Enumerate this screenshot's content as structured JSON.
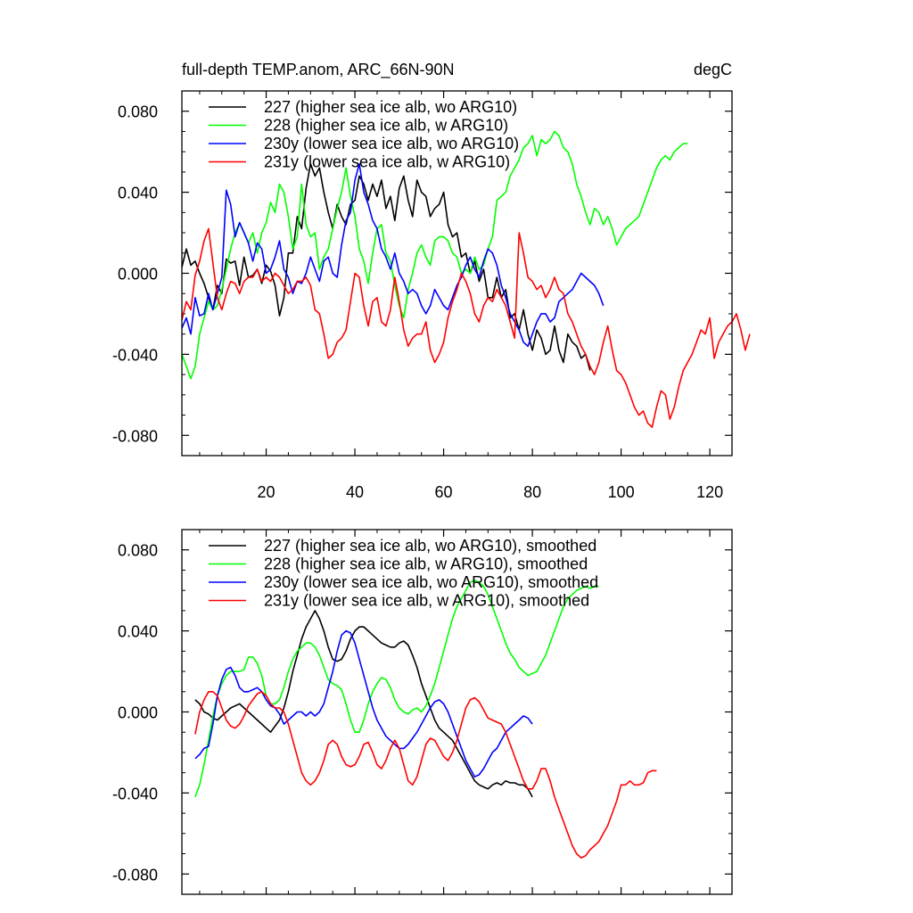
{
  "chart_data": [
    {
      "type": "line",
      "title": "full-depth TEMP.anom, ARC_66N-90N",
      "units": "degC",
      "xlim": [
        1,
        125
      ],
      "ylim": [
        -0.09,
        0.09
      ],
      "xticks": [
        20,
        40,
        60,
        80,
        100,
        120
      ],
      "xtick_labels": [
        "20",
        "40",
        "60",
        "80",
        "100",
        "120"
      ],
      "yticks": [
        -0.08,
        -0.04,
        0.0,
        0.04,
        0.08
      ],
      "ytick_labels": [
        "-0.080",
        "-0.040",
        "0.000",
        "0.040",
        "0.080"
      ],
      "legend_position": "top-left",
      "series": [
        {
          "name": "227 (higher sea ice alb, wo ARG10)",
          "color": "#000000",
          "x0": 1,
          "values": [
            0.003,
            0.012,
            0.004,
            0.006,
            0.0,
            -0.005,
            -0.012,
            -0.018,
            -0.006,
            -0.01,
            0.007,
            0.005,
            0.006,
            -0.006,
            0.008,
            -0.002,
            -0.001,
            0.002,
            -0.005,
            0.004,
            0.001,
            -0.006,
            -0.021,
            -0.012,
            0.01,
            0.01,
            0.028,
            0.022,
            0.042,
            0.054,
            0.048,
            0.052,
            0.04,
            0.03,
            0.022,
            0.034,
            0.028,
            0.024,
            0.034,
            0.036,
            0.048,
            0.044,
            0.036,
            0.044,
            0.038,
            0.046,
            0.032,
            0.038,
            0.026,
            0.042,
            0.048,
            0.036,
            0.028,
            0.046,
            0.04,
            0.038,
            0.028,
            0.032,
            0.034,
            0.04,
            0.024,
            0.018,
            0.02,
            0.008,
            0.01,
            0.0,
            0.006,
            -0.004,
            0.002,
            -0.012,
            -0.012,
            -0.002,
            -0.012,
            -0.008,
            -0.022,
            -0.02,
            -0.028,
            -0.018,
            -0.03,
            -0.038,
            -0.028,
            -0.032,
            -0.04,
            -0.038,
            -0.026,
            -0.038,
            -0.044,
            -0.03,
            -0.034,
            -0.036,
            -0.042,
            -0.04,
            -0.048
          ]
        },
        {
          "name": "228 (higher sea ice alb, w ARG10)",
          "color": "#00ff00",
          "x0": 1,
          "values": [
            -0.04,
            -0.046,
            -0.052,
            -0.046,
            -0.03,
            -0.022,
            -0.014,
            -0.018,
            -0.016,
            -0.008,
            0.002,
            0.012,
            0.02,
            0.025,
            0.02,
            0.015,
            0.02,
            0.01,
            0.02,
            0.025,
            0.035,
            0.03,
            0.044,
            0.04,
            0.028,
            0.012,
            0.018,
            0.044,
            0.024,
            0.018,
            0.02,
            0.002,
            0.008,
            0.012,
            0.022,
            0.032,
            0.04,
            0.052,
            0.038,
            0.028,
            0.012,
            0.006,
            -0.005,
            0.01,
            0.022,
            0.024,
            0.01,
            0.006,
            -0.006,
            -0.016,
            -0.022,
            -0.008,
            0.0,
            0.01,
            0.014,
            0.008,
            0.004,
            0.016,
            0.018,
            0.018,
            0.016,
            0.01,
            0.008,
            0.0,
            0.002,
            0.0,
            0.008,
            0.002,
            0.004,
            0.012,
            0.018,
            0.036,
            0.038,
            0.04,
            0.048,
            0.052,
            0.056,
            0.062,
            0.064,
            0.068,
            0.058,
            0.066,
            0.064,
            0.066,
            0.07,
            0.068,
            0.062,
            0.06,
            0.054,
            0.044,
            0.038,
            0.03,
            0.024,
            0.032,
            0.03,
            0.024,
            0.028,
            0.022,
            0.014,
            0.018,
            0.022,
            0.024,
            0.026,
            0.028,
            0.034,
            0.04,
            0.046,
            0.052,
            0.056,
            0.058,
            0.056,
            0.06,
            0.062,
            0.064,
            0.064
          ]
        },
        {
          "name": "230y (lower sea ice alb, wo ARG10)",
          "color": "#0000ff",
          "x0": 1,
          "values": [
            -0.027,
            -0.022,
            -0.03,
            -0.012,
            -0.021,
            -0.02,
            -0.01,
            -0.018,
            -0.01,
            -0.002,
            0.041,
            0.034,
            0.018,
            0.025,
            0.02,
            0.015,
            0.006,
            0.015,
            0.012,
            0.0,
            0.002,
            0.008,
            0.016,
            0.002,
            -0.002,
            -0.01,
            -0.004,
            -0.005,
            0.0,
            0.008,
            0.002,
            -0.004,
            0.006,
            0.008,
            0.0,
            -0.002,
            0.014,
            0.026,
            0.03,
            0.046,
            0.054,
            0.04,
            0.034,
            0.026,
            0.022,
            0.012,
            0.008,
            0.002,
            0.01,
            0.0,
            -0.004,
            -0.01,
            -0.008,
            -0.01,
            -0.016,
            -0.02,
            -0.016,
            -0.008,
            -0.012,
            -0.016,
            -0.018,
            -0.012,
            -0.006,
            -0.002,
            0.004,
            0.008,
            0.002,
            -0.002,
            0.006,
            0.012,
            0.01,
            0.004,
            -0.006,
            -0.012,
            -0.02,
            -0.024,
            -0.028,
            -0.034,
            -0.036,
            -0.03,
            -0.024,
            -0.02,
            -0.02,
            -0.024,
            -0.022,
            -0.014,
            -0.012,
            -0.01,
            -0.008,
            -0.004,
            0.0,
            -0.002,
            -0.004,
            -0.006,
            -0.01,
            -0.016
          ]
        },
        {
          "name": "231y (lower sea ice alb, w ARG10)",
          "color": "#ff0000",
          "x0": 1,
          "values": [
            -0.023,
            -0.014,
            -0.018,
            -0.001,
            0.006,
            0.016,
            0.022,
            0.005,
            -0.012,
            -0.018,
            -0.01,
            -0.004,
            -0.005,
            -0.01,
            -0.004,
            -0.002,
            -0.002,
            0.002,
            -0.004,
            -0.002,
            -0.004,
            0.0,
            -0.002,
            -0.006,
            -0.01,
            -0.008,
            -0.004,
            -0.004,
            -0.002,
            -0.006,
            -0.018,
            -0.02,
            -0.03,
            -0.042,
            -0.04,
            -0.034,
            -0.032,
            -0.028,
            -0.014,
            0.0,
            -0.002,
            -0.016,
            -0.026,
            -0.014,
            -0.012,
            -0.024,
            -0.026,
            -0.018,
            -0.002,
            -0.014,
            -0.028,
            -0.036,
            -0.032,
            -0.03,
            -0.03,
            -0.024,
            -0.038,
            -0.044,
            -0.04,
            -0.034,
            -0.022,
            -0.014,
            -0.008,
            0.0,
            -0.004,
            -0.01,
            -0.02,
            -0.024,
            -0.016,
            -0.012,
            -0.014,
            -0.008,
            -0.012,
            -0.016,
            -0.024,
            -0.032,
            0.02,
            0.01,
            -0.002,
            -0.004,
            -0.008,
            -0.006,
            -0.012,
            -0.008,
            -0.002,
            -0.008,
            -0.01,
            -0.02,
            -0.024,
            -0.03,
            -0.036,
            -0.04,
            -0.046,
            -0.05,
            -0.044,
            -0.034,
            -0.026,
            -0.038,
            -0.048,
            -0.05,
            -0.054,
            -0.06,
            -0.066,
            -0.07,
            -0.068,
            -0.074,
            -0.076,
            -0.066,
            -0.058,
            -0.06,
            -0.072,
            -0.066,
            -0.056,
            -0.048,
            -0.044,
            -0.04,
            -0.034,
            -0.028,
            -0.03,
            -0.022,
            -0.042,
            -0.034,
            -0.03,
            -0.026,
            -0.024,
            -0.02,
            -0.028,
            -0.038,
            -0.03
          ]
        }
      ]
    },
    {
      "type": "line",
      "xlim": [
        1,
        125
      ],
      "ylim": [
        -0.09,
        0.09
      ],
      "xticks": [
        20,
        40,
        60,
        80,
        100,
        120
      ],
      "yticks": [
        -0.08,
        -0.04,
        0.0,
        0.04,
        0.08
      ],
      "ytick_labels": [
        "-0.080",
        "-0.040",
        "0.000",
        "0.040",
        "0.080"
      ],
      "legend_position": "top-left",
      "series": [
        {
          "name": "227 (higher sea ice alb, wo ARG10), smoothed",
          "color": "#000000",
          "x0": 4,
          "values": [
            0.006,
            0.004,
            0.0,
            -0.001,
            -0.003,
            -0.004,
            -0.002,
            0.0,
            0.002,
            0.003,
            0.004,
            0.002,
            0.0,
            -0.002,
            -0.004,
            -0.006,
            -0.008,
            -0.01,
            -0.007,
            -0.004,
            0.002,
            0.01,
            0.02,
            0.028,
            0.036,
            0.042,
            0.046,
            0.05,
            0.046,
            0.04,
            0.032,
            0.026,
            0.025,
            0.026,
            0.03,
            0.036,
            0.04,
            0.042,
            0.042,
            0.04,
            0.038,
            0.036,
            0.034,
            0.033,
            0.032,
            0.032,
            0.034,
            0.035,
            0.033,
            0.028,
            0.022,
            0.014,
            0.008,
            0.002,
            -0.004,
            -0.008,
            -0.01,
            -0.012,
            -0.014,
            -0.018,
            -0.022,
            -0.026,
            -0.03,
            -0.034,
            -0.036,
            -0.037,
            -0.038,
            -0.036,
            -0.035,
            -0.036,
            -0.034,
            -0.035,
            -0.035,
            -0.036,
            -0.036,
            -0.038,
            -0.042
          ]
        },
        {
          "name": "228 (higher sea ice alb, w ARG10), smoothed",
          "color": "#00ff00",
          "x0": 4,
          "values": [
            -0.042,
            -0.036,
            -0.026,
            -0.014,
            -0.002,
            0.008,
            0.014,
            0.018,
            0.02,
            0.02,
            0.02,
            0.021,
            0.027,
            0.027,
            0.024,
            0.018,
            0.008,
            0.004,
            0.004,
            0.006,
            0.012,
            0.02,
            0.026,
            0.03,
            0.032,
            0.034,
            0.034,
            0.032,
            0.028,
            0.022,
            0.016,
            0.014,
            0.013,
            0.011,
            0.004,
            -0.004,
            -0.01,
            -0.01,
            -0.004,
            0.004,
            0.01,
            0.014,
            0.017,
            0.016,
            0.012,
            0.006,
            0.002,
            0.0,
            -0.001,
            0.001,
            0.002,
            0.0,
            0.003,
            0.008,
            0.014,
            0.022,
            0.03,
            0.038,
            0.046,
            0.052,
            0.056,
            0.06,
            0.064,
            0.065,
            0.064,
            0.062,
            0.058,
            0.052,
            0.046,
            0.04,
            0.034,
            0.029,
            0.026,
            0.022,
            0.02,
            0.018,
            0.019,
            0.02,
            0.024,
            0.028,
            0.034,
            0.04,
            0.046,
            0.052,
            0.056,
            0.058,
            0.06,
            0.061,
            0.062,
            0.061,
            0.062,
            0.062
          ]
        },
        {
          "name": "230y (lower sea ice alb, wo ARG10), smoothed",
          "color": "#0000ff",
          "x0": 4,
          "values": [
            -0.023,
            -0.021,
            -0.018,
            -0.017,
            -0.006,
            0.008,
            0.016,
            0.021,
            0.022,
            0.018,
            0.012,
            0.01,
            0.01,
            0.011,
            0.012,
            0.01,
            0.006,
            0.003,
            0.002,
            -0.001,
            -0.006,
            -0.004,
            -0.002,
            0.0,
            0.0,
            -0.002,
            0.0,
            -0.002,
            0.0,
            0.004,
            0.012,
            0.02,
            0.03,
            0.038,
            0.04,
            0.039,
            0.034,
            0.026,
            0.018,
            0.01,
            0.002,
            -0.004,
            -0.008,
            -0.012,
            -0.014,
            -0.016,
            -0.018,
            -0.018,
            -0.016,
            -0.013,
            -0.01,
            -0.006,
            -0.002,
            0.002,
            0.005,
            0.006,
            0.004,
            0.0,
            -0.006,
            -0.012,
            -0.018,
            -0.024,
            -0.028,
            -0.032,
            -0.031,
            -0.028,
            -0.024,
            -0.02,
            -0.018,
            -0.014,
            -0.01,
            -0.008,
            -0.006,
            -0.004,
            -0.002,
            -0.003,
            -0.006
          ]
        },
        {
          "name": "231y (lower sea ice alb, w ARG10), smoothed",
          "color": "#ff0000",
          "x0": 4,
          "values": [
            -0.011,
            0.0,
            0.006,
            0.01,
            0.01,
            0.008,
            0.002,
            -0.004,
            -0.007,
            -0.008,
            -0.006,
            -0.002,
            0.003,
            0.006,
            0.009,
            0.01,
            0.008,
            0.004,
            0.002,
            0.002,
            0.0,
            -0.006,
            -0.014,
            -0.022,
            -0.03,
            -0.034,
            -0.036,
            -0.034,
            -0.03,
            -0.024,
            -0.016,
            -0.014,
            -0.016,
            -0.022,
            -0.026,
            -0.027,
            -0.026,
            -0.022,
            -0.016,
            -0.015,
            -0.02,
            -0.026,
            -0.028,
            -0.024,
            -0.018,
            -0.014,
            -0.018,
            -0.026,
            -0.034,
            -0.036,
            -0.032,
            -0.024,
            -0.016,
            -0.013,
            -0.014,
            -0.018,
            -0.022,
            -0.024,
            -0.02,
            -0.014,
            -0.006,
            0.002,
            0.006,
            0.007,
            0.005,
            0.001,
            -0.003,
            -0.004,
            -0.005,
            -0.006,
            -0.01,
            -0.016,
            -0.022,
            -0.028,
            -0.034,
            -0.038,
            -0.038,
            -0.034,
            -0.028,
            -0.028,
            -0.034,
            -0.042,
            -0.048,
            -0.054,
            -0.06,
            -0.066,
            -0.07,
            -0.072,
            -0.071,
            -0.068,
            -0.066,
            -0.064,
            -0.06,
            -0.056,
            -0.05,
            -0.044,
            -0.036,
            -0.036,
            -0.034,
            -0.036,
            -0.036,
            -0.035,
            -0.03,
            -0.029,
            -0.029
          ]
        }
      ]
    }
  ]
}
